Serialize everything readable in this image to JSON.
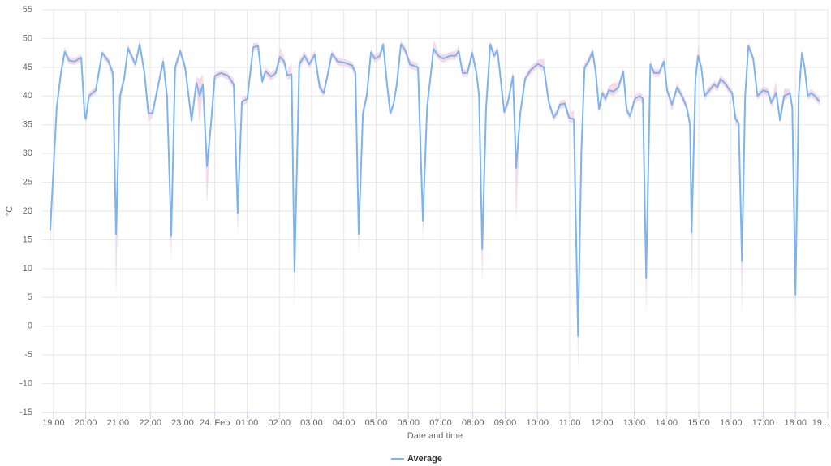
{
  "chart_data": {
    "type": "line",
    "x_label": "Date and time",
    "y_label": "°C",
    "x": [
      18.9,
      19.1,
      19.23,
      19.35,
      19.48,
      19.65,
      19.86,
      19.96,
      20.0,
      20.1,
      20.31,
      20.51,
      20.71,
      20.84,
      20.94,
      21.06,
      21.19,
      21.31,
      21.54,
      21.67,
      21.82,
      21.94,
      22.07,
      22.25,
      22.4,
      22.52,
      22.65,
      22.77,
      22.93,
      23.08,
      23.28,
      23.43,
      23.53,
      23.63,
      23.76,
      23.88,
      24.0,
      24.2,
      24.41,
      24.59,
      24.71,
      24.84,
      25.01,
      25.19,
      25.34,
      25.47,
      25.57,
      25.74,
      25.89,
      26.02,
      26.15,
      26.25,
      26.38,
      26.47,
      26.62,
      26.78,
      26.93,
      27.1,
      27.25,
      27.38,
      27.51,
      27.63,
      27.81,
      28.03,
      28.26,
      28.36,
      28.46,
      28.59,
      28.71,
      28.84,
      28.96,
      29.12,
      29.22,
      29.34,
      29.44,
      29.54,
      29.64,
      29.77,
      29.9,
      30.05,
      30.3,
      30.45,
      30.58,
      30.7,
      30.78,
      30.93,
      31.08,
      31.3,
      31.46,
      31.56,
      31.68,
      31.83,
      31.98,
      32.11,
      32.19,
      32.29,
      32.41,
      32.54,
      32.66,
      32.76,
      32.84,
      32.97,
      33.09,
      33.24,
      33.34,
      33.47,
      33.62,
      33.79,
      34.02,
      34.2,
      34.35,
      34.5,
      34.6,
      34.7,
      34.85,
      34.98,
      35.13,
      35.26,
      35.36,
      35.46,
      35.58,
      35.71,
      35.81,
      35.91,
      36.01,
      36.11,
      36.21,
      36.36,
      36.51,
      36.66,
      36.77,
      36.87,
      37.02,
      37.17,
      37.27,
      37.37,
      37.5,
      37.62,
      37.77,
      37.92,
      38.02,
      38.17,
      38.33,
      38.48,
      38.63,
      38.73,
      38.78,
      38.9,
      38.98,
      39.08,
      39.18,
      39.33,
      39.48,
      39.58,
      39.68,
      39.84,
      39.96,
      40.04,
      40.14,
      40.24,
      40.34,
      40.44,
      40.54,
      40.69,
      40.82,
      41.0,
      41.15,
      41.25,
      41.4,
      41.52,
      41.65,
      41.83,
      41.9,
      42.0,
      42.1,
      42.2,
      42.28,
      42.38,
      42.48,
      42.6,
      42.75
    ],
    "series": [
      {
        "name": "Average",
        "color": "#7cb5ec",
        "values": [
          16.7,
          38,
          44,
          47.7,
          46.2,
          46,
          46.7,
          37,
          36,
          40,
          41,
          47.5,
          46,
          44,
          16,
          40,
          43,
          48.3,
          45.5,
          49,
          44,
          37,
          37,
          42,
          46,
          40,
          15.7,
          45,
          47.8,
          45,
          35.7,
          42.3,
          40,
          42,
          27.8,
          35,
          43.5,
          44,
          43.5,
          42,
          19.7,
          39,
          39.5,
          48.5,
          48.7,
          42.5,
          44.3,
          43.4,
          44,
          46.8,
          46,
          43.6,
          43.8,
          9.5,
          45.5,
          47,
          45.5,
          47.2,
          41.5,
          40.5,
          44,
          47.4,
          46,
          45.8,
          45.3,
          44,
          16,
          37,
          40,
          47.6,
          46.5,
          47,
          49,
          42,
          37,
          38.5,
          42,
          49,
          48,
          45.5,
          45,
          18.3,
          38,
          44,
          48.2,
          47,
          46.5,
          47,
          47,
          47.8,
          44,
          44,
          47.5,
          44,
          40,
          13.4,
          38,
          49,
          47,
          48,
          44,
          37.2,
          39,
          43.5,
          27.5,
          37,
          43,
          44.5,
          45.6,
          45,
          39,
          36.3,
          37,
          38.5,
          38.7,
          36.2,
          36,
          -1.7,
          30,
          45,
          46,
          47.7,
          44,
          37.7,
          40.5,
          39.5,
          41,
          40.8,
          41.5,
          44.2,
          37.5,
          36.5,
          39.5,
          40,
          39.5,
          8.3,
          45.5,
          44,
          44,
          46,
          41,
          38.5,
          41.5,
          40,
          38,
          35,
          16.3,
          43,
          47,
          45,
          40,
          41,
          42,
          41.5,
          43,
          42,
          41,
          40.5,
          36,
          35.3,
          11.3,
          40,
          48.7,
          46.5,
          40,
          41,
          40.7,
          38.8,
          40.6,
          35.8,
          40,
          40.5,
          38,
          5.5,
          40,
          47.5,
          45,
          40,
          40.5,
          40,
          39
        ]
      }
    ],
    "range": {
      "color_top": "#f9d3e2",
      "color_bottom": "#e4d9f4",
      "low": [
        13,
        37,
        43.3,
        47,
        45.6,
        45.4,
        46,
        36.2,
        35.4,
        39.4,
        40.4,
        46.8,
        45.3,
        42.5,
        5,
        38,
        42.2,
        47.6,
        44.8,
        48.2,
        43.2,
        35.5,
        36.3,
        41.2,
        45.3,
        38,
        11,
        44,
        47,
        44.2,
        35,
        41.5,
        35,
        41,
        21,
        34,
        42.8,
        43.4,
        42.8,
        41.2,
        15.5,
        38.2,
        38.8,
        47.8,
        48,
        41.8,
        43.6,
        42.7,
        43.3,
        46,
        45.2,
        42.9,
        43,
        3,
        44.6,
        46.3,
        44.8,
        46.5,
        40.8,
        39.8,
        43.2,
        46.7,
        45.3,
        45.2,
        44.6,
        43,
        12,
        36,
        39.2,
        46.8,
        45.8,
        46.3,
        48.3,
        41.2,
        36.3,
        37.8,
        41.2,
        48.3,
        47.3,
        44.8,
        44.3,
        14.5,
        37,
        43.2,
        47.5,
        46.3,
        45.8,
        46.3,
        46.3,
        47,
        43.3,
        43.3,
        46.8,
        43.2,
        39,
        7,
        37,
        48.3,
        46.3,
        47.3,
        43.3,
        36.5,
        38.3,
        42.8,
        18,
        36,
        42.3,
        43.8,
        44.9,
        44.3,
        38.3,
        35.6,
        36.3,
        37.8,
        38,
        35.5,
        35.3,
        -8,
        28,
        44.3,
        45.3,
        47,
        43.3,
        37,
        39.8,
        38.8,
        40.3,
        40,
        40.8,
        43.5,
        36.8,
        35.8,
        38.8,
        39.3,
        38.5,
        1.5,
        44.8,
        43.3,
        43.3,
        45.3,
        40.3,
        37.3,
        40.8,
        39.3,
        37.3,
        34,
        4.5,
        42,
        46.3,
        44.3,
        39.3,
        40.3,
        41.3,
        40.8,
        42.3,
        41.3,
        40.3,
        39.8,
        35,
        34.5,
        2,
        39,
        48,
        45.8,
        39.3,
        40.3,
        40,
        38,
        39.9,
        35,
        39.3,
        39.8,
        37,
        -0.5,
        39,
        46.8,
        44.3,
        39.3,
        39.8,
        39.3,
        38.3
      ],
      "high": [
        17.5,
        38.8,
        44.8,
        48.5,
        46.9,
        46.6,
        47.3,
        38,
        36.8,
        40.7,
        41.6,
        48,
        46.6,
        44.6,
        17,
        40.8,
        43.8,
        49,
        46.2,
        50,
        44.8,
        37.8,
        37.8,
        42.8,
        47,
        41,
        16.5,
        45.8,
        48.5,
        45.8,
        36.5,
        43.3,
        43,
        43.8,
        28.8,
        36,
        44,
        44.6,
        44.1,
        43,
        20.5,
        39.8,
        40.2,
        49.2,
        49.3,
        43.2,
        45,
        44.1,
        44.7,
        48.5,
        46.8,
        44.3,
        45.8,
        10.5,
        46.3,
        47.8,
        46.3,
        48,
        42.3,
        41.2,
        44.8,
        48,
        46.6,
        46.4,
        45.9,
        44.8,
        17,
        38,
        40.8,
        48.3,
        47.2,
        47.8,
        49.5,
        42.8,
        37.7,
        39.2,
        42.8,
        49.6,
        48.7,
        46.2,
        45.7,
        19.2,
        39,
        44.8,
        49.8,
        47.7,
        47.2,
        47.7,
        47.8,
        48.8,
        44.7,
        44.7,
        48.3,
        44.8,
        41,
        14.3,
        39,
        49.6,
        47.7,
        48.7,
        44.7,
        38,
        39.8,
        44.2,
        28.5,
        38,
        43.7,
        45.2,
        46.3,
        46.5,
        39.7,
        37,
        37.7,
        39.2,
        39.4,
        37,
        37.5,
        -0.5,
        31,
        45.7,
        46.7,
        48.4,
        44.7,
        38.5,
        41.2,
        40.2,
        41.7,
        42.3,
        42.3,
        45,
        38.2,
        37.2,
        40.2,
        40.7,
        40.2,
        9.3,
        46.2,
        44.7,
        44.7,
        46.7,
        41.7,
        39.2,
        42.2,
        40.7,
        38.7,
        36,
        17.3,
        44,
        48.8,
        45.7,
        40.7,
        41.7,
        42.7,
        42.2,
        43.7,
        42.7,
        41.7,
        41.2,
        37,
        36,
        12.3,
        41,
        49.3,
        47.2,
        40.7,
        41.7,
        41.4,
        39.5,
        42.5,
        36.6,
        41.3,
        41.2,
        39,
        6.5,
        41,
        48.2,
        45.7,
        40.7,
        41.2,
        40.7,
        39.7
      ]
    },
    "xlim": [
      18.65,
      43.0
    ],
    "xticks": [
      {
        "value": 19,
        "label": "19:00"
      },
      {
        "value": 20,
        "label": "20:00"
      },
      {
        "value": 21,
        "label": "21:00"
      },
      {
        "value": 22,
        "label": "22:00"
      },
      {
        "value": 23,
        "label": "23:00"
      },
      {
        "value": 24,
        "label": "24. Feb"
      },
      {
        "value": 25,
        "label": "01:00"
      },
      {
        "value": 26,
        "label": "02:00"
      },
      {
        "value": 27,
        "label": "03:00"
      },
      {
        "value": 28,
        "label": "04:00"
      },
      {
        "value": 29,
        "label": "05:00"
      },
      {
        "value": 30,
        "label": "06:00"
      },
      {
        "value": 31,
        "label": "07:00"
      },
      {
        "value": 32,
        "label": "08:00"
      },
      {
        "value": 33,
        "label": "09:00"
      },
      {
        "value": 34,
        "label": "10:00"
      },
      {
        "value": 35,
        "label": "11:00"
      },
      {
        "value": 36,
        "label": "12:00"
      },
      {
        "value": 37,
        "label": "13:00"
      },
      {
        "value": 38,
        "label": "14:00"
      },
      {
        "value": 39,
        "label": "15:00"
      },
      {
        "value": 40,
        "label": "16:00"
      },
      {
        "value": 41,
        "label": "17:00"
      },
      {
        "value": 42,
        "label": "18:00"
      },
      {
        "value": 43,
        "label": "19..."
      }
    ],
    "ylim": [
      -15,
      55
    ],
    "yticks": [
      -15,
      -10,
      -5,
      0,
      5,
      10,
      15,
      20,
      25,
      30,
      35,
      40,
      45,
      50,
      55
    ],
    "grid": true,
    "legend": "bottom"
  }
}
